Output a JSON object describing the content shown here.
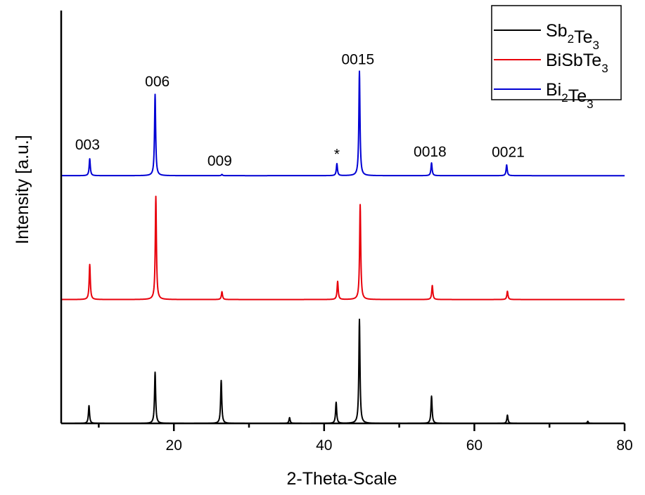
{
  "chart_data": {
    "type": "line",
    "title": "",
    "xlabel": "2-Theta-Scale",
    "ylabel": "Intensity [a.u.]",
    "xlim": [
      5,
      80
    ],
    "ylim": [
      0,
      100
    ],
    "x_major_ticks": [
      20,
      40,
      60,
      80
    ],
    "x_minor_ticks": [
      10,
      30,
      50,
      70
    ],
    "x_tick_labels": [
      "20",
      "40",
      "60",
      "80"
    ],
    "y_ticks_shown": false,
    "grid": false,
    "legend_position": "top-right",
    "peak_width": 0.18,
    "series": [
      {
        "name": "Sb2Te3",
        "label_main": [
          "Sb",
          "Te"
        ],
        "label_subs": [
          "2",
          "3"
        ],
        "color": "#000000",
        "offset": 0,
        "peaks": [
          {
            "x": 8.7,
            "intensity": 4.3
          },
          {
            "x": 17.5,
            "intensity": 12.4
          },
          {
            "x": 26.3,
            "intensity": 10.4
          },
          {
            "x": 35.4,
            "intensity": 1.4
          },
          {
            "x": 41.6,
            "intensity": 5.1
          },
          {
            "x": 44.7,
            "intensity": 25.2
          },
          {
            "x": 54.3,
            "intensity": 6.6
          },
          {
            "x": 64.4,
            "intensity": 2.0
          },
          {
            "x": 75.1,
            "intensity": 0.5
          }
        ]
      },
      {
        "name": "BiSbTe3",
        "label_main": [
          "BiSbTe"
        ],
        "label_subs": [
          "3"
        ],
        "color": "#e8000b",
        "offset": 30,
        "peaks": [
          {
            "x": 8.8,
            "intensity": 8.5
          },
          {
            "x": 17.6,
            "intensity": 25.0
          },
          {
            "x": 26.4,
            "intensity": 1.9
          },
          {
            "x": 41.8,
            "intensity": 4.4
          },
          {
            "x": 44.8,
            "intensity": 23.0
          },
          {
            "x": 54.4,
            "intensity": 3.4
          },
          {
            "x": 64.4,
            "intensity": 2.0
          }
        ]
      },
      {
        "name": "Bi2Te3",
        "label_main": [
          "Bi",
          "Te"
        ],
        "label_subs": [
          "2",
          "3"
        ],
        "color": "#0000d4",
        "offset": 60,
        "peaks": [
          {
            "x": 8.8,
            "intensity": 4.1
          },
          {
            "x": 17.5,
            "intensity": 19.7
          },
          {
            "x": 26.4,
            "intensity": 0.3
          },
          {
            "x": 41.7,
            "intensity": 2.9
          },
          {
            "x": 44.7,
            "intensity": 25.3
          },
          {
            "x": 54.3,
            "intensity": 3.1
          },
          {
            "x": 64.3,
            "intensity": 2.6
          }
        ]
      }
    ],
    "annotations": [
      {
        "text": "003",
        "x": 8.5,
        "y": 66.3
      },
      {
        "text": "006",
        "x": 17.8,
        "y": 81.6
      },
      {
        "text": "009",
        "x": 26.1,
        "y": 62.4
      },
      {
        "text": "*",
        "x": 41.7,
        "y": 64.0
      },
      {
        "text": "0015",
        "x": 44.5,
        "y": 87.0
      },
      {
        "text": "0018",
        "x": 54.1,
        "y": 64.6
      },
      {
        "text": "0021",
        "x": 64.5,
        "y": 64.5
      }
    ]
  }
}
